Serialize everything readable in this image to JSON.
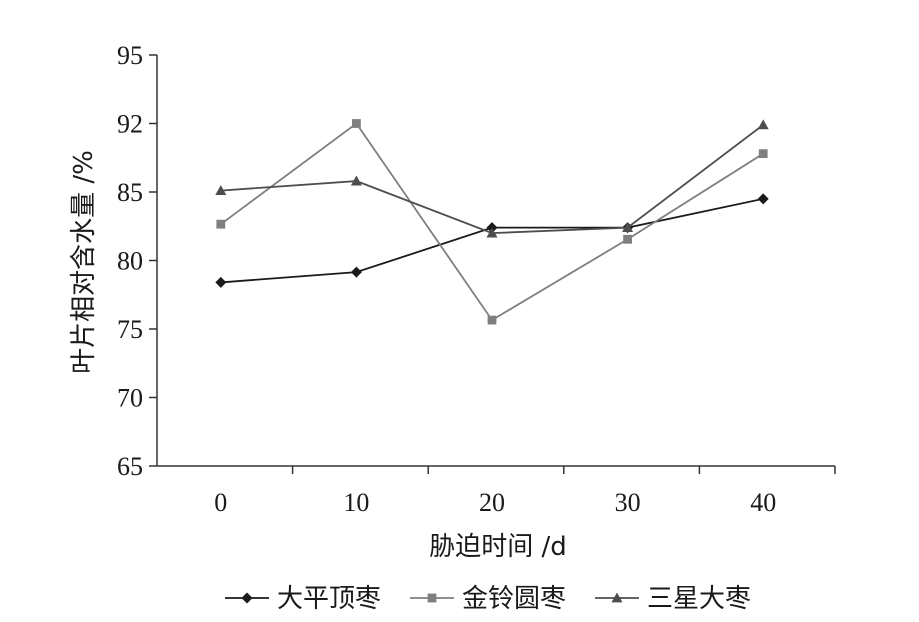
{
  "chart_data": {
    "type": "line",
    "xlabel": "胁迫时间 /d",
    "ylabel": "叶片相对含水量 /%",
    "categories": [
      "0",
      "10",
      "20",
      "30",
      "40"
    ],
    "y_tick_labels": [
      "65",
      "70",
      "75",
      "80",
      "85",
      "92",
      "95"
    ],
    "ylim_ticks": 7,
    "grid": false,
    "legend_position": "bottom",
    "series": [
      {
        "name": "大平顶枣",
        "marker": "diamond",
        "color": "#1a1a1a",
        "values_tick_index": [
          2.68,
          2.83,
          3.48,
          3.48,
          3.9
        ]
      },
      {
        "name": "金铃圆枣",
        "marker": "square",
        "color": "#7f7f7f",
        "values_tick_index": [
          3.53,
          5.0,
          2.13,
          3.31,
          4.56
        ]
      },
      {
        "name": "三星大枣",
        "marker": "triangle",
        "color": "#4d4d4d",
        "values_tick_index": [
          4.02,
          4.16,
          3.4,
          3.48,
          4.98
        ]
      }
    ]
  }
}
